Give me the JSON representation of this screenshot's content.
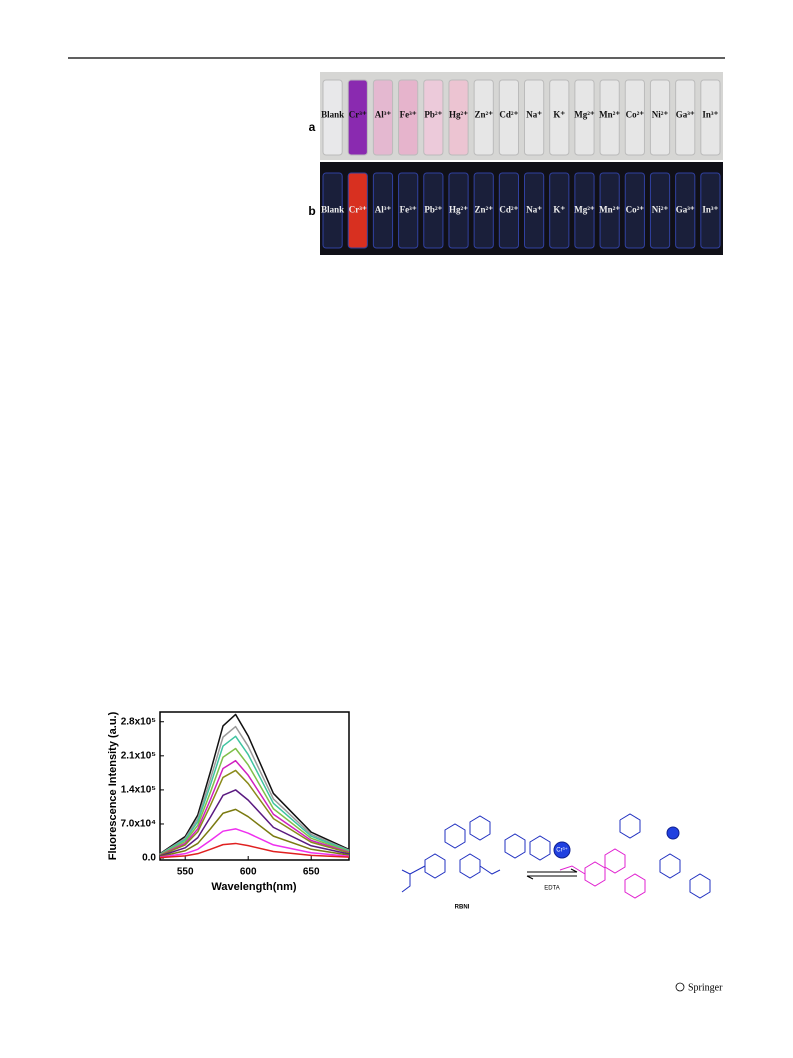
{
  "figure_top": {
    "panel_a": {
      "label": "a",
      "vials": [
        "Blank",
        "Cr³⁺",
        "Al³⁺",
        "Fe³⁺",
        "Pb²⁺",
        "Hg²⁺",
        "Zn²⁺",
        "Cd²⁺",
        "Na⁺",
        "K⁺",
        "Mg²⁺",
        "Mn²⁺",
        "Co²⁺",
        "Ni²⁺",
        "Ga³⁺",
        "In³⁺"
      ]
    },
    "panel_b": {
      "label": "b",
      "vials": [
        "Blank",
        "Cr³⁺",
        "Al³⁺",
        "Fe³⁺",
        "Pb²⁺",
        "Hg²⁺",
        "Zn²⁺",
        "Cd²⁺",
        "Na⁺",
        "K⁺",
        "Mg²⁺",
        "Mn²⁺",
        "Co²⁺",
        "Ni²⁺",
        "Ga³⁺",
        "In³⁺"
      ]
    }
  },
  "chart_data": {
    "type": "line",
    "x_label": "Wavelength(nm)",
    "y_label": "Fluorescence Intensity (a.u.)",
    "x": [
      530,
      550,
      560,
      570,
      580,
      590,
      600,
      620,
      650,
      680
    ],
    "xlim": [
      530,
      680
    ],
    "xticks": [
      550,
      600,
      650
    ],
    "ylim": [
      -4000,
      300000
    ],
    "yticks": [
      {
        "value": 0,
        "label": "0.0"
      },
      {
        "value": 70000,
        "label": "7.0x10⁴"
      },
      {
        "value": 140000,
        "label": "1.4x10⁵"
      },
      {
        "value": 210000,
        "label": "2.1x10⁵"
      },
      {
        "value": 280000,
        "label": "2.8x10⁵"
      }
    ],
    "series": [
      {
        "color": "#111111",
        "values": [
          8850,
          44250,
          88500,
          177000,
          271400,
          295000,
          250750,
          132750,
          53100,
          17700
        ]
      },
      {
        "color": "#9a9a9a",
        "values": [
          8100,
          40500,
          81000,
          162000,
          248400,
          270000,
          229500,
          121500,
          48600,
          16200
        ]
      },
      {
        "color": "#3fc4a0",
        "values": [
          7500,
          37500,
          75000,
          150000,
          230000,
          250000,
          212500,
          112500,
          45000,
          15000
        ]
      },
      {
        "color": "#7fbf4a",
        "values": [
          6750,
          33750,
          67500,
          135000,
          207000,
          225000,
          191250,
          101250,
          40500,
          13500
        ]
      },
      {
        "color": "#d020c0",
        "values": [
          6000,
          30000,
          60000,
          120000,
          184000,
          200000,
          170000,
          90000,
          36000,
          12000
        ]
      },
      {
        "color": "#8a8a1a",
        "values": [
          5400,
          27000,
          54000,
          108000,
          165600,
          180000,
          153000,
          81000,
          32400,
          10800
        ]
      },
      {
        "color": "#5a1a80",
        "values": [
          4200,
          21000,
          42000,
          84000,
          128800,
          140000,
          119000,
          63000,
          25200,
          8400
        ]
      },
      {
        "color": "#7a7a10",
        "values": [
          3000,
          15000,
          30000,
          60000,
          92000,
          100000,
          85000,
          45000,
          18000,
          6000
        ]
      },
      {
        "color": "#ee30ee",
        "values": [
          1800,
          9000,
          18000,
          36000,
          55200,
          60000,
          51000,
          27000,
          10800,
          3600
        ]
      },
      {
        "color": "#e02020",
        "values": [
          900,
          4500,
          9000,
          18000,
          27600,
          30000,
          25500,
          13500,
          5400,
          1800
        ]
      }
    ]
  },
  "scheme": {
    "reactant": "RBNI",
    "reagent": "EDTA",
    "ion": "Cr³⁺"
  },
  "footer": {
    "publisher": "Springer"
  }
}
